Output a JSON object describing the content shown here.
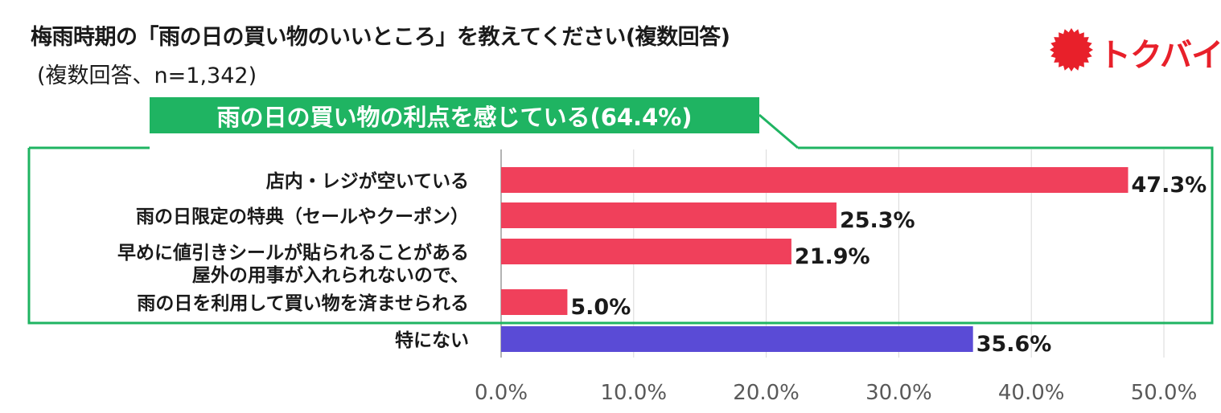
{
  "title": "梅雨時期の「雨の日の買い物のいいところ」を教えてください(複数回答)",
  "subtitle": "(複数回答、n=1,342)",
  "logo_text": "トクバイ",
  "callout": {
    "text": "雨の日の買い物の利点を感じている(64.4%)",
    "border_color": "#1fb462"
  },
  "colors": {
    "main_bar": "#f0405b",
    "none_bar": "#5a4bd6",
    "logo": "#e8202a",
    "callout": "#1fb462"
  },
  "chart_data": {
    "type": "bar",
    "orientation": "horizontal",
    "categories": [
      [
        "店内・レジが空いている"
      ],
      [
        "雨の日限定の特典（セールやクーポン）"
      ],
      [
        "早めに値引きシールが貼られることがある"
      ],
      [
        "屋外の用事が入れられないので、",
        "雨の日を利用して買い物を済ませられる"
      ],
      [
        "特にない"
      ]
    ],
    "values": [
      47.3,
      25.3,
      21.9,
      5.0,
      35.6
    ],
    "value_labels": [
      "47.3%",
      "25.3%",
      "21.9%",
      "5.0%",
      "35.6%"
    ],
    "bar_colors": [
      "#f0405b",
      "#f0405b",
      "#f0405b",
      "#f0405b",
      "#5a4bd6"
    ],
    "xlim": [
      0,
      50
    ],
    "xticks": [
      "0.0%",
      "10.0%",
      "20.0%",
      "30.0%",
      "40.0%",
      "50.0%"
    ],
    "grid": true,
    "legend": "none"
  }
}
